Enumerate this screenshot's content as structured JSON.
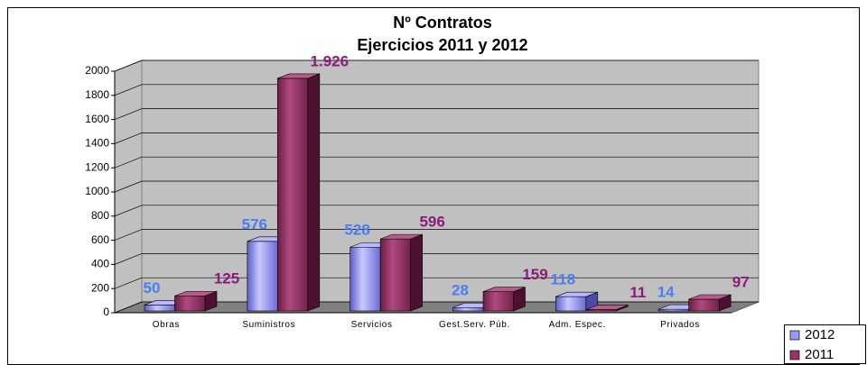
{
  "chart_data": {
    "type": "bar3d",
    "title": "Nº Contratos",
    "subtitle": "Ejercicios 2011 y 2012",
    "categories": [
      "Obras",
      "Suministros",
      "Servicios",
      "Gest.Serv. Púb.",
      "Adm. Espec.",
      "Privados"
    ],
    "series": [
      {
        "name": "2012",
        "color": "#9999ff",
        "label_color": "#4a7ef0",
        "values": [
          50,
          576,
          528,
          28,
          118,
          14
        ]
      },
      {
        "name": "2011",
        "color": "#993366",
        "label_color": "#8b1a7a",
        "values": [
          125,
          1926,
          596,
          159,
          11,
          97
        ],
        "value_labels": [
          "125",
          "1.926",
          "596",
          "159",
          "11",
          "97"
        ]
      }
    ],
    "ylim": [
      0,
      2000
    ],
    "yticks": [
      0,
      200,
      400,
      600,
      800,
      1000,
      1200,
      1400,
      1600,
      1800,
      2000
    ],
    "grid": true,
    "legend": "bottom-right"
  }
}
